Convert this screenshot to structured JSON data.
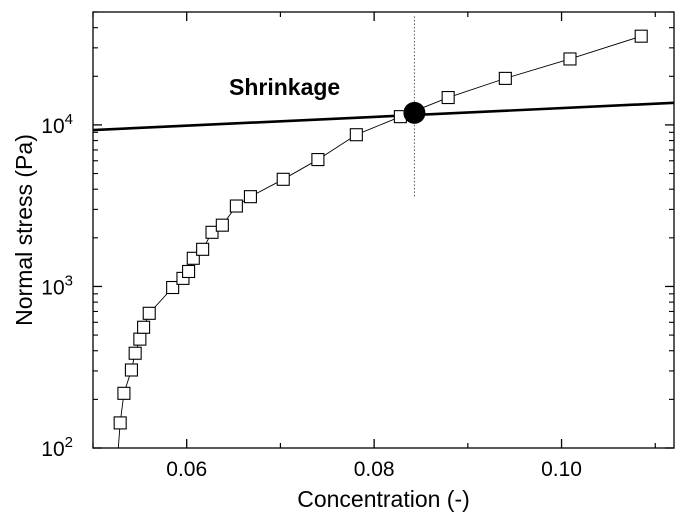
{
  "chart_data": {
    "type": "scatter",
    "xlabel": "Concentration (-)",
    "ylabel": "Normal stress (Pa)",
    "xlim": [
      0.05,
      0.112
    ],
    "ylim": [
      100,
      50000
    ],
    "y_scale": "log",
    "x_ticks": [
      0.06,
      0.08,
      0.1
    ],
    "x_tick_labels": [
      "0.06",
      "0.08",
      "0.10"
    ],
    "y_ticks": [
      100,
      1000,
      10000
    ],
    "y_tick_labels": [
      {
        "base": "10",
        "exp": "2"
      },
      {
        "base": "10",
        "exp": "3"
      },
      {
        "base": "10",
        "exp": "4"
      }
    ],
    "grid": false,
    "annotation": "Shrinkage",
    "series": [
      {
        "style": "open-square markers with thin connecting line",
        "color": "#000000",
        "x": [
          0.0527,
          0.0529,
          0.0533,
          0.0541,
          0.0545,
          0.055,
          0.0554,
          0.056,
          0.0585,
          0.0596,
          0.0602,
          0.0607,
          0.0617,
          0.0627,
          0.0638,
          0.0653,
          0.0668,
          0.0703,
          0.074,
          0.0781,
          0.0828,
          0.0879,
          0.094,
          0.1009,
          0.1085
        ],
        "y": [
          100,
          143,
          218,
          304,
          386,
          472,
          559,
          682,
          985,
          1122,
          1238,
          1494,
          1698,
          2164,
          2395,
          3147,
          3596,
          4606,
          6102,
          8695,
          11250,
          14770,
          19410,
          25600,
          35420
        ]
      },
      {
        "style": "thick solid line",
        "color": "#000000",
        "x": [
          0.05,
          0.112
        ],
        "y": [
          9290,
          13700
        ]
      }
    ],
    "marker": {
      "x": 0.0843,
      "y": 11870,
      "style": "filled circle"
    },
    "reference_line": {
      "x": 0.0843,
      "y_range": [
        3600,
        47000
      ],
      "style": "dotted vertical"
    }
  }
}
